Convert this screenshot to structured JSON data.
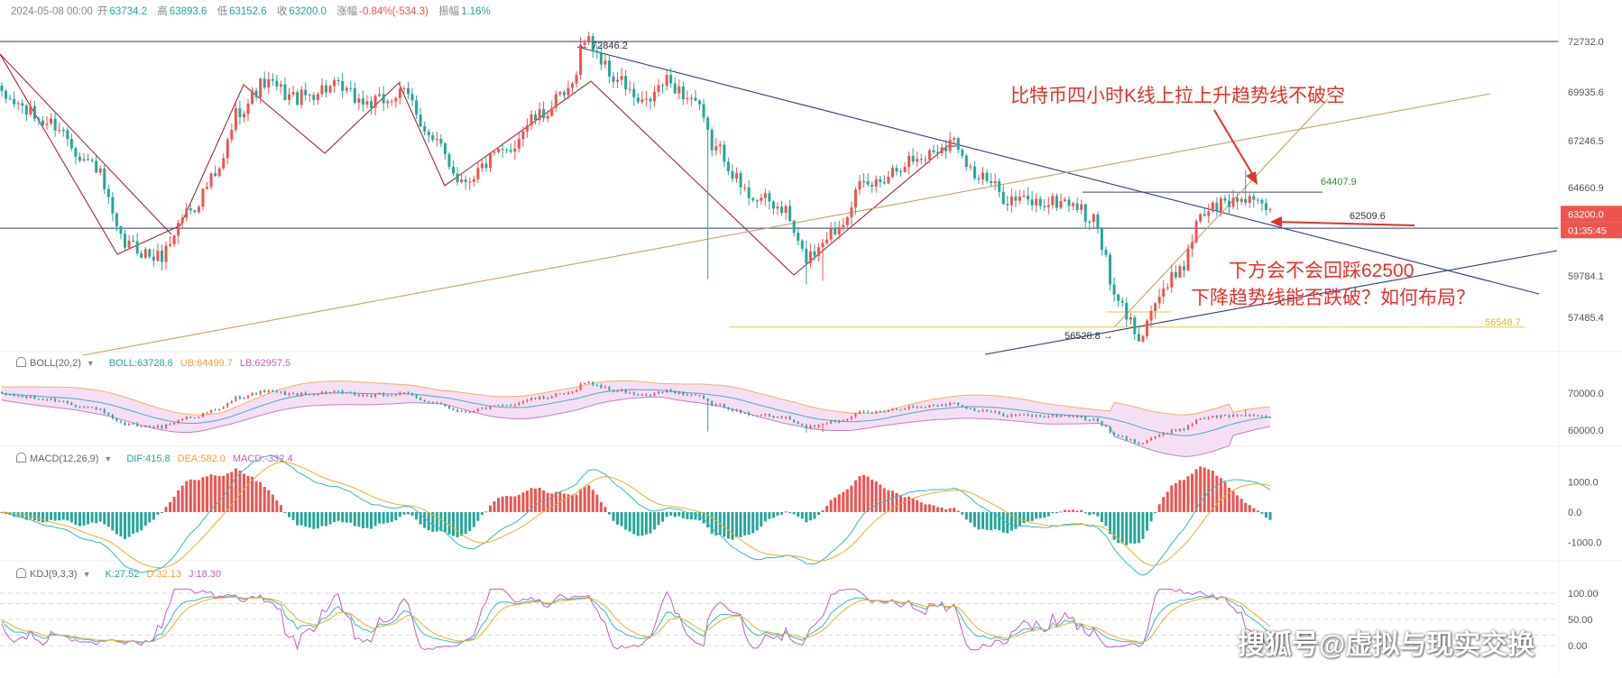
{
  "header": {
    "datetime": "2024-05-08 00:00",
    "open_label": "开",
    "open": "63734.2",
    "high_label": "高",
    "high": "63893.6",
    "low_label": "低",
    "low": "63152.6",
    "close_label": "收",
    "close": "63200.0",
    "change_label": "涨幅",
    "change": "-0.84%(-534.3)",
    "amp_label": "振幅",
    "amp": "1.16%"
  },
  "price_axis": {
    "ticks": [
      "72732.0",
      "69935.6",
      "67246.5",
      "64660.9",
      "59784.1",
      "57485.4"
    ],
    "current_price": "63200.0",
    "countdown": "01:35:45"
  },
  "price_labels": {
    "high": "72846.2",
    "low": "56528.8",
    "level1": "64407.9",
    "level2": "62509.6",
    "level3": "56548.7"
  },
  "annotations": {
    "top": "比特币四小时K线上拉上升趋势线不破空",
    "mid1": "下方会不会回踩62500",
    "mid2": "下降趋势线能否跌破？如何布局？"
  },
  "indicators": {
    "boll": {
      "name": "BOLL(20,2)",
      "mid": "BOLL:63728.6",
      "ub": "UB:64499.7",
      "lb": "LB:62957.5",
      "ticks": [
        "70000.0",
        "60000.0"
      ]
    },
    "macd": {
      "name": "MACD(12,26,9)",
      "dif": "DIF:415.8",
      "dea": "DEA:582.0",
      "macd": "MACD:-332.4",
      "ticks": [
        "1000.0",
        "0.0",
        "-1000.0"
      ]
    },
    "kdj": {
      "name": "KDJ(9,3,3)",
      "k": "K:27.52",
      "d": "D:32.13",
      "j": "J:18.30",
      "ticks": [
        "100.00",
        "50.00",
        "0.00"
      ]
    }
  },
  "watermark": "搜狐号@虚拟与现实交换",
  "colors": {
    "up": "#ef5350",
    "down": "#26a69a",
    "trend_red": "#a02838",
    "trend_blue": "#2c3e7a",
    "trend_gold": "#c9a060",
    "annotation": "#e4322b"
  },
  "chart_data": {
    "type": "candlestick",
    "symbol_hint": "BTC 4H",
    "price_anchors": [
      {
        "x": 0,
        "y": 69600
      },
      {
        "x": 12,
        "y": 68200
      },
      {
        "x": 22,
        "y": 66000
      },
      {
        "x": 30,
        "y": 61500
      },
      {
        "x": 38,
        "y": 60800
      },
      {
        "x": 46,
        "y": 63500
      },
      {
        "x": 52,
        "y": 65200
      },
      {
        "x": 58,
        "y": 69000
      },
      {
        "x": 64,
        "y": 70400
      },
      {
        "x": 72,
        "y": 69600
      },
      {
        "x": 80,
        "y": 70200
      },
      {
        "x": 90,
        "y": 69300
      },
      {
        "x": 98,
        "y": 69800
      },
      {
        "x": 106,
        "y": 67000
      },
      {
        "x": 112,
        "y": 65100
      },
      {
        "x": 122,
        "y": 66500
      },
      {
        "x": 130,
        "y": 68500
      },
      {
        "x": 138,
        "y": 69800
      },
      {
        "x": 142,
        "y": 72846
      },
      {
        "x": 150,
        "y": 70600
      },
      {
        "x": 156,
        "y": 69200
      },
      {
        "x": 162,
        "y": 70500
      },
      {
        "x": 168,
        "y": 69600
      },
      {
        "x": 174,
        "y": 66800
      },
      {
        "x": 182,
        "y": 64300
      },
      {
        "x": 190,
        "y": 63500
      },
      {
        "x": 196,
        "y": 60800
      },
      {
        "x": 202,
        "y": 62200
      },
      {
        "x": 210,
        "y": 64700
      },
      {
        "x": 222,
        "y": 66200
      },
      {
        "x": 232,
        "y": 67200
      },
      {
        "x": 238,
        "y": 65200
      },
      {
        "x": 246,
        "y": 64000
      },
      {
        "x": 254,
        "y": 63800
      },
      {
        "x": 260,
        "y": 63900
      },
      {
        "x": 266,
        "y": 62800
      },
      {
        "x": 272,
        "y": 58200
      },
      {
        "x": 277,
        "y": 56600
      },
      {
        "x": 282,
        "y": 58600
      },
      {
        "x": 288,
        "y": 60500
      },
      {
        "x": 292,
        "y": 63300
      },
      {
        "x": 298,
        "y": 63800
      },
      {
        "x": 304,
        "y": 64200
      },
      {
        "x": 308,
        "y": 63200
      }
    ],
    "horizontal_levels": [
      72732.0,
      62509.6,
      64407.9,
      56548.7
    ],
    "boll_last": {
      "mid": 63728.6,
      "ub": 64499.7,
      "lb": 62957.5
    },
    "macd_last": {
      "dif": 415.8,
      "dea": 582.0,
      "hist": -332.4
    },
    "kdj_last": {
      "k": 27.52,
      "d": 32.13,
      "j": 18.3
    },
    "kdj_levels": [
      100,
      80,
      50,
      20,
      0
    ]
  }
}
